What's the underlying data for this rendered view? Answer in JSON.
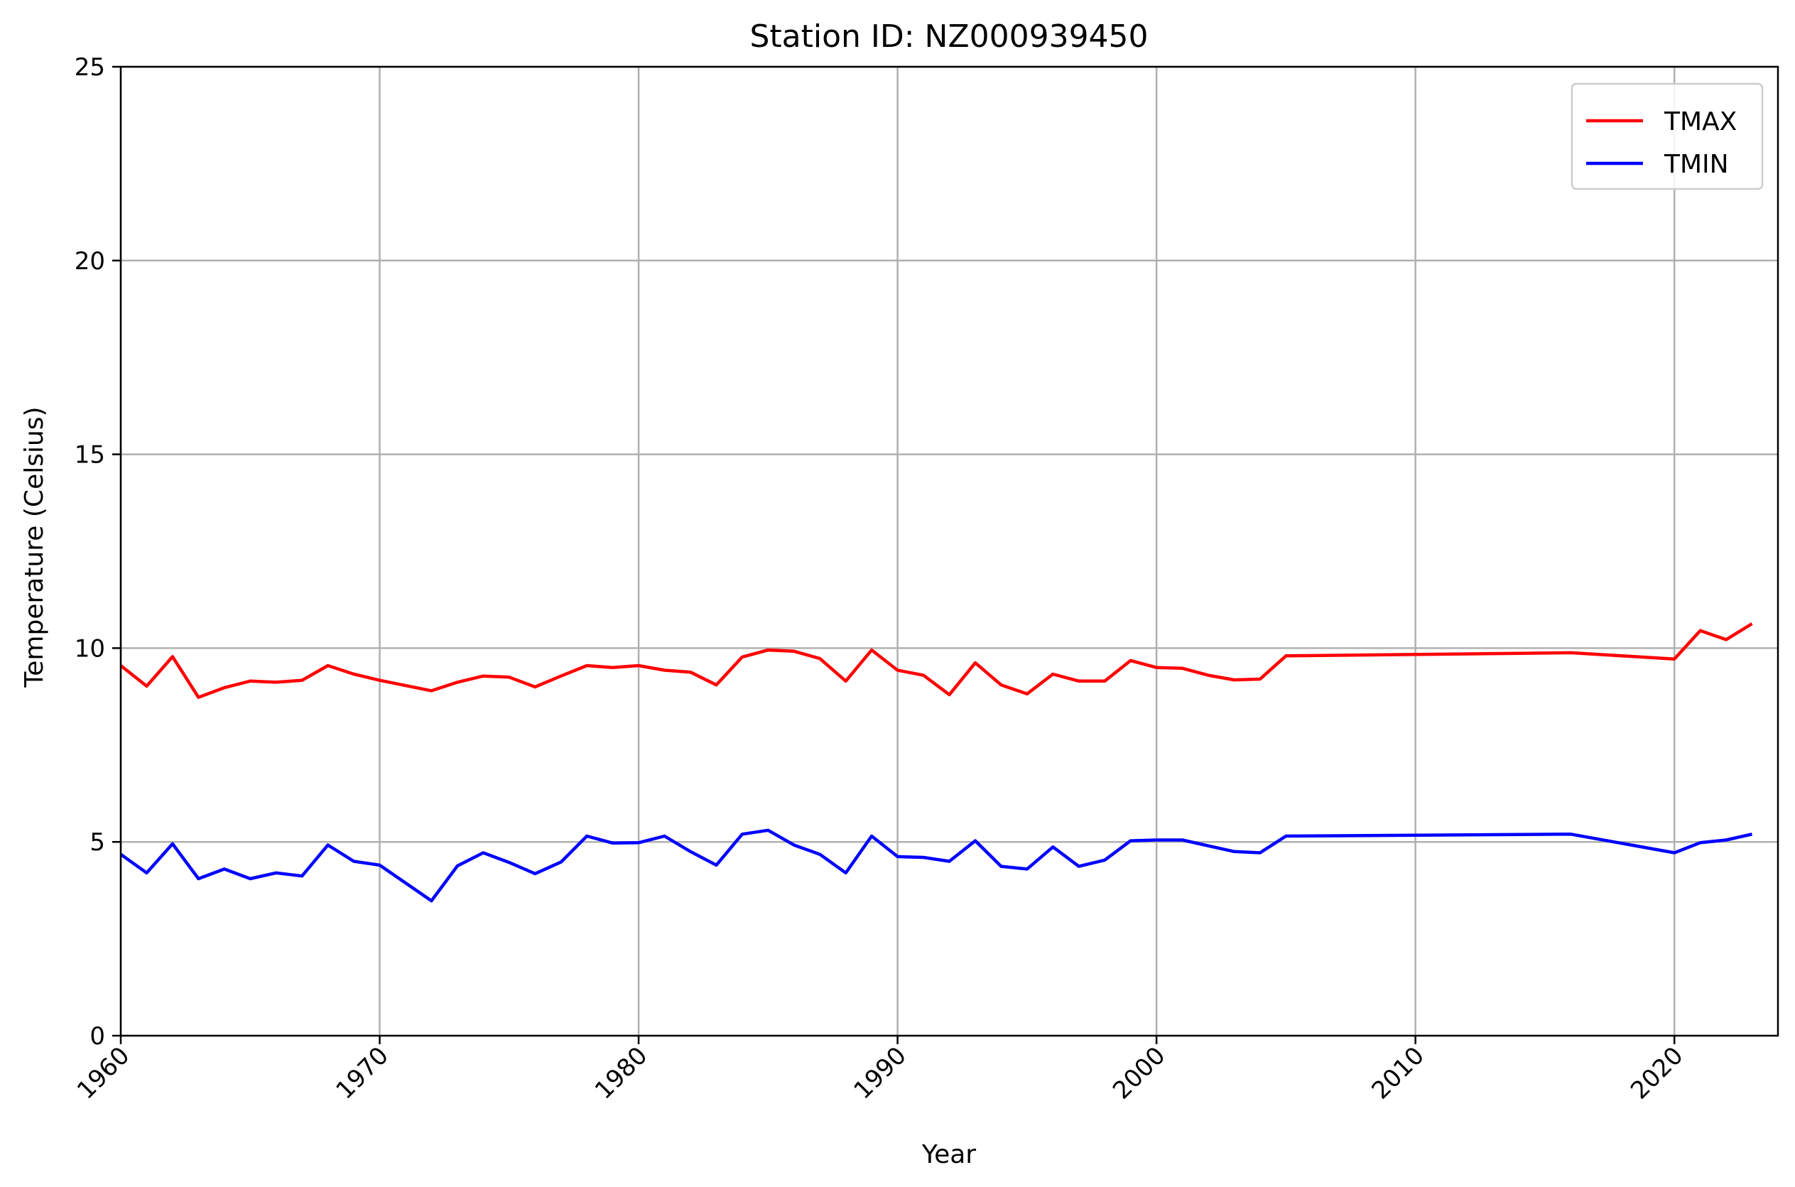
{
  "chart_data": {
    "type": "line",
    "title": "Station ID: NZ000939450",
    "xlabel": "Year",
    "ylabel": "Temperature (Celsius)",
    "xlim": [
      1960,
      2024
    ],
    "ylim": [
      0,
      25
    ],
    "xticks": [
      1960,
      1970,
      1980,
      1990,
      2000,
      2010,
      2020
    ],
    "yticks": [
      0,
      5,
      10,
      15,
      20,
      25
    ],
    "grid": true,
    "legend_position": "top-right",
    "series": [
      {
        "name": "TMAX",
        "color": "#ff0000",
        "points": [
          [
            1960,
            9.55
          ],
          [
            1961,
            9.02
          ],
          [
            1962,
            9.78
          ],
          [
            1963,
            8.73
          ],
          [
            1964,
            8.98
          ],
          [
            1965,
            9.15
          ],
          [
            1966,
            9.12
          ],
          [
            1967,
            9.17
          ],
          [
            1968,
            9.55
          ],
          [
            1969,
            9.33
          ],
          [
            1970,
            9.17
          ],
          [
            1972,
            8.9
          ],
          [
            1973,
            9.12
          ],
          [
            1974,
            9.28
          ],
          [
            1975,
            9.25
          ],
          [
            1976,
            9.0
          ],
          [
            1977,
            9.28
          ],
          [
            1978,
            9.55
          ],
          [
            1979,
            9.5
          ],
          [
            1980,
            9.55
          ],
          [
            1981,
            9.43
          ],
          [
            1982,
            9.38
          ],
          [
            1983,
            9.05
          ],
          [
            1984,
            9.77
          ],
          [
            1985,
            9.95
          ],
          [
            1986,
            9.92
          ],
          [
            1987,
            9.73
          ],
          [
            1988,
            9.15
          ],
          [
            1989,
            9.95
          ],
          [
            1990,
            9.43
          ],
          [
            1991,
            9.3
          ],
          [
            1992,
            8.8
          ],
          [
            1993,
            9.62
          ],
          [
            1994,
            9.05
          ],
          [
            1995,
            8.82
          ],
          [
            1996,
            9.33
          ],
          [
            1997,
            9.15
          ],
          [
            1998,
            9.15
          ],
          [
            1999,
            9.68
          ],
          [
            2000,
            9.5
          ],
          [
            2001,
            9.48
          ],
          [
            2002,
            9.3
          ],
          [
            2003,
            9.18
          ],
          [
            2004,
            9.2
          ],
          [
            2005,
            9.8
          ],
          [
            2016,
            9.88
          ],
          [
            2020,
            9.72
          ],
          [
            2021,
            10.45
          ],
          [
            2022,
            10.22
          ],
          [
            2023,
            10.63
          ]
        ]
      },
      {
        "name": "TMIN",
        "color": "#0000ff",
        "points": [
          [
            1960,
            4.68
          ],
          [
            1961,
            4.2
          ],
          [
            1962,
            4.95
          ],
          [
            1963,
            4.05
          ],
          [
            1964,
            4.3
          ],
          [
            1965,
            4.05
          ],
          [
            1966,
            4.2
          ],
          [
            1967,
            4.12
          ],
          [
            1968,
            4.92
          ],
          [
            1969,
            4.5
          ],
          [
            1970,
            4.4
          ],
          [
            1972,
            3.48
          ],
          [
            1973,
            4.38
          ],
          [
            1974,
            4.72
          ],
          [
            1975,
            4.47
          ],
          [
            1976,
            4.18
          ],
          [
            1977,
            4.48
          ],
          [
            1978,
            5.15
          ],
          [
            1979,
            4.97
          ],
          [
            1980,
            4.98
          ],
          [
            1981,
            5.15
          ],
          [
            1982,
            4.75
          ],
          [
            1983,
            4.4
          ],
          [
            1984,
            5.2
          ],
          [
            1985,
            5.3
          ],
          [
            1986,
            4.92
          ],
          [
            1987,
            4.68
          ],
          [
            1988,
            4.2
          ],
          [
            1989,
            5.15
          ],
          [
            1990,
            4.62
          ],
          [
            1991,
            4.6
          ],
          [
            1992,
            4.5
          ],
          [
            1993,
            5.03
          ],
          [
            1994,
            4.37
          ],
          [
            1995,
            4.3
          ],
          [
            1996,
            4.87
          ],
          [
            1997,
            4.37
          ],
          [
            1998,
            4.53
          ],
          [
            1999,
            5.03
          ],
          [
            2000,
            5.05
          ],
          [
            2001,
            5.05
          ],
          [
            2002,
            4.9
          ],
          [
            2003,
            4.75
          ],
          [
            2004,
            4.72
          ],
          [
            2005,
            5.15
          ],
          [
            2016,
            5.2
          ],
          [
            2020,
            4.72
          ],
          [
            2021,
            4.98
          ],
          [
            2022,
            5.05
          ],
          [
            2023,
            5.2
          ]
        ]
      }
    ]
  }
}
